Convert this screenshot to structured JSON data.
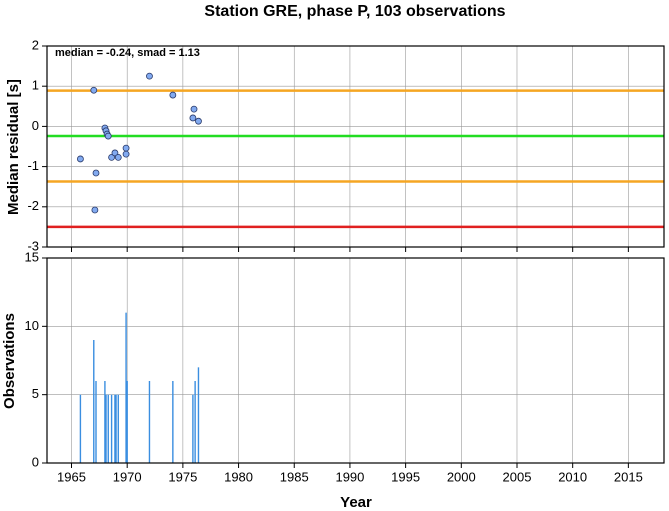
{
  "chart_data": [
    {
      "type": "scatter",
      "title": "Station GRE, phase P, 103 observations",
      "annotation": "median = -0.24, smad = 1.13",
      "y_label": "Median residual [s]",
      "x": [
        1965.8,
        1967.0,
        1967.2,
        1967.1,
        1968.0,
        1968.1,
        1968.2,
        1968.3,
        1968.6,
        1968.9,
        1969.2,
        1969.9,
        1969.9,
        1972.0,
        1974.1,
        1975.9,
        1976.0,
        1976.4
      ],
      "values": [
        -0.81,
        0.9,
        -1.16,
        -2.08,
        -0.04,
        -0.11,
        -0.19,
        -0.24,
        -0.77,
        -0.66,
        -0.77,
        -0.54,
        -0.69,
        1.25,
        0.78,
        0.21,
        0.43,
        0.13
      ],
      "color": "#82aaf0",
      "reference_lines": [
        {
          "value": 0.89,
          "color": "#f5a623"
        },
        {
          "value": -0.24,
          "color": "#22dd22"
        },
        {
          "value": -1.37,
          "color": "#f5a623"
        },
        {
          "value": -2.5,
          "color": "#e02020"
        }
      ],
      "xlim": [
        1962.8,
        2018.2
      ],
      "xticks": [
        1965,
        1970,
        1975,
        1980,
        1985,
        1990,
        1995,
        2000,
        2005,
        2010,
        2015
      ],
      "ylim": [
        -3,
        2
      ],
      "yticks": [
        -3,
        -2,
        -1,
        0,
        1,
        2
      ],
      "grid": true
    },
    {
      "type": "bar",
      "y_label": "Observations",
      "x_label": "Year",
      "x": [
        1965.8,
        1967.0,
        1967.2,
        1968.0,
        1968.1,
        1968.3,
        1968.6,
        1968.9,
        1969.0,
        1969.2,
        1969.9,
        1970.0,
        1972.0,
        1974.1,
        1975.9,
        1976.1,
        1976.4
      ],
      "values": [
        5,
        9,
        6,
        6,
        5,
        5,
        5,
        5,
        5,
        5,
        11,
        6,
        6,
        6,
        5,
        6,
        7
      ],
      "color": "#3a8ee0",
      "xlim": [
        1962.8,
        2018.2
      ],
      "xticks": [
        1965,
        1970,
        1975,
        1980,
        1985,
        1990,
        1995,
        2000,
        2005,
        2010,
        2015
      ],
      "ylim": [
        0,
        15
      ],
      "yticks": [
        0,
        5,
        10,
        15
      ],
      "grid": true
    }
  ]
}
